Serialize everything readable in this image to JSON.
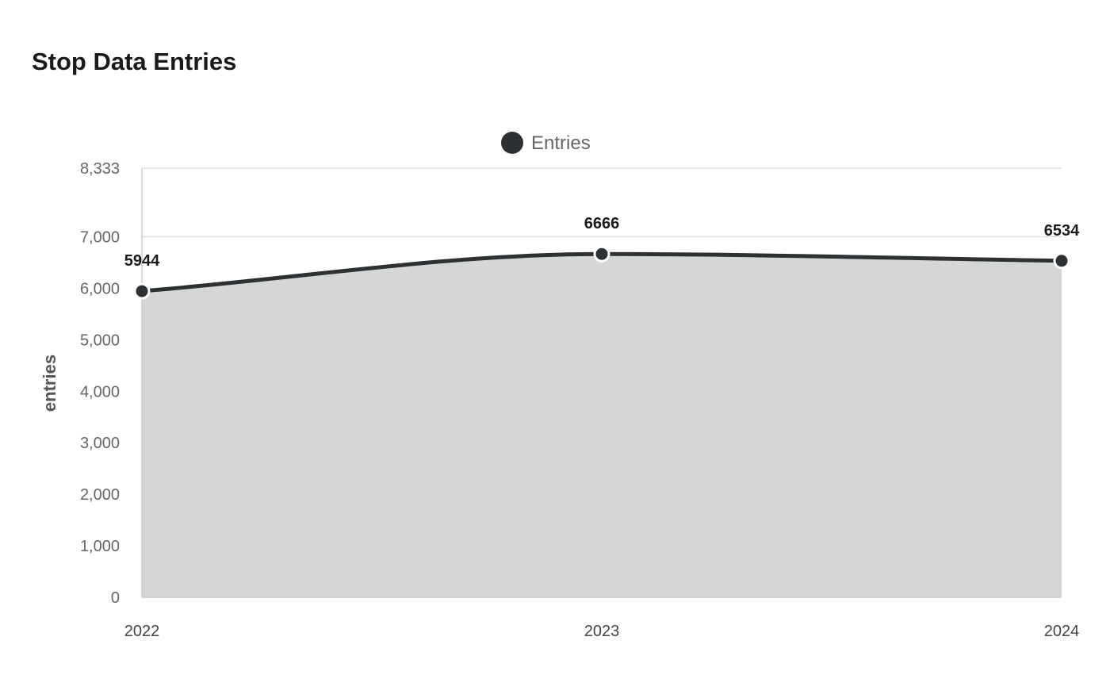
{
  "chart_data": {
    "type": "area",
    "title": "Stop Data Entries",
    "xlabel": "",
    "ylabel": "entries",
    "categories": [
      "2022",
      "2023",
      "2024"
    ],
    "series": [
      {
        "name": "Entries",
        "values": [
          5944,
          6666,
          6534
        ]
      }
    ],
    "ylim": [
      0,
      8333
    ],
    "y_ticks": [
      0,
      1000,
      2000,
      3000,
      4000,
      5000,
      6000,
      7000,
      8333
    ],
    "y_tick_labels": [
      "0",
      "1,000",
      "2,000",
      "3,000",
      "4,000",
      "5,000",
      "6,000",
      "7,000",
      "8,333"
    ],
    "data_labels": [
      "5944",
      "6666",
      "6534"
    ],
    "legend_position": "top-center",
    "grid": true,
    "colors": {
      "line": "#2d3133",
      "area": "#d5d7d6",
      "marker_stroke": "#ffffff",
      "grid": "#dddddd"
    }
  }
}
